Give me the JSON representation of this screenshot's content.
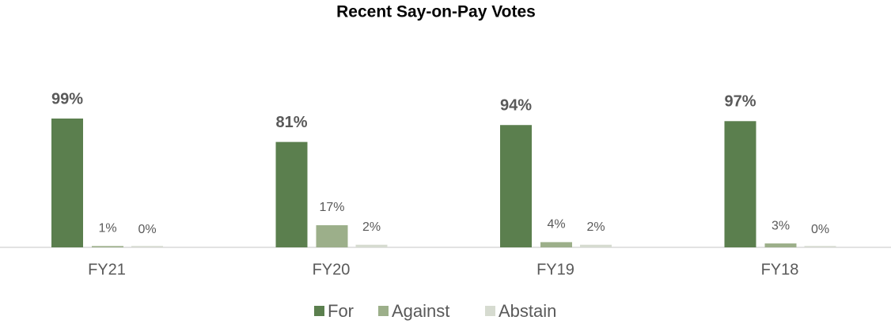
{
  "chart_data": {
    "type": "bar",
    "title": "Recent Say-on-Pay Votes",
    "categories": [
      "FY21",
      "FY20",
      "FY19",
      "FY18"
    ],
    "series": [
      {
        "name": "For",
        "color": "#5b7f4e",
        "values": [
          99,
          81,
          94,
          97
        ],
        "value_labels": [
          "99%",
          "81%",
          "94%",
          "97%"
        ]
      },
      {
        "name": "Against",
        "color": "#9caf8a",
        "values": [
          1,
          17,
          4,
          3
        ],
        "value_labels": [
          "1%",
          "17%",
          "4%",
          "3%"
        ]
      },
      {
        "name": "Abstain",
        "color": "#d6dbd0",
        "values": [
          0,
          2,
          2,
          0
        ],
        "value_labels": [
          "0%",
          "2%",
          "2%",
          "0%"
        ]
      }
    ]
  }
}
